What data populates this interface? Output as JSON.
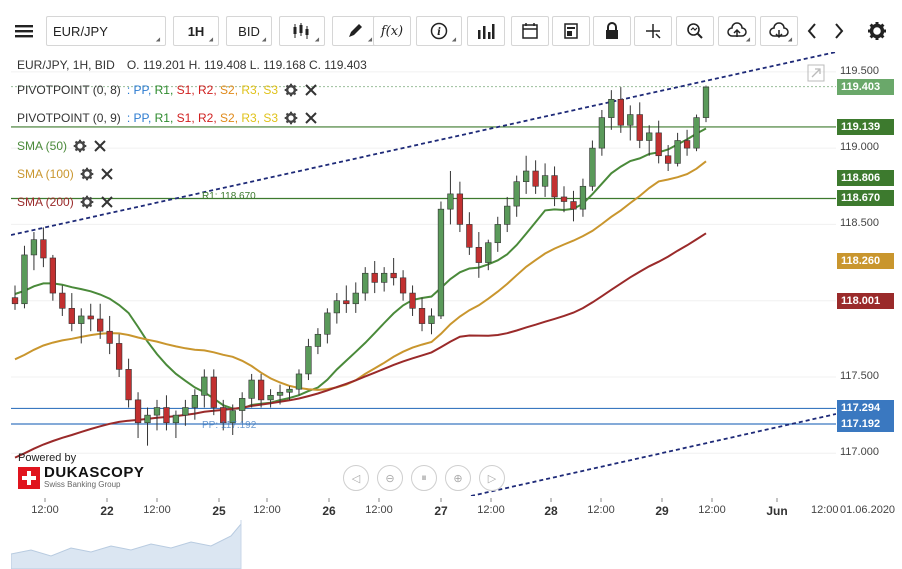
{
  "toolbar": {
    "symbol": "EUR/JPY",
    "period": "1H",
    "side": "BID",
    "icons": [
      "menu-icon",
      "candles-icon",
      "draw-icon",
      "function-icon",
      "info-icon",
      "volume-bars-icon",
      "calendar-icon",
      "book-icon",
      "lock-icon",
      "crosshair-icon",
      "zoom-icon",
      "upload-icon",
      "download-icon",
      "arrow-left-icon",
      "arrow-right-icon",
      "gear-icon"
    ]
  },
  "header": {
    "instrument": "EUR/JPY, 1H, BID",
    "ohlc": "O. 119.201 H. 119.408 L. 119.168 C. 119.403"
  },
  "indicators": [
    {
      "name": "PIVOTPOINT (0, 8)",
      "color": "#333333",
      "levels": true
    },
    {
      "name": "PIVOTPOINT (0, 9)",
      "color": "#333333",
      "levels": true
    },
    {
      "name": "SMA (50)",
      "color": "#4a8a3a"
    },
    {
      "name": "SMA (100)",
      "color": "#c9962e"
    },
    {
      "name": "SMA (200)",
      "color": "#9a2a2a"
    }
  ],
  "pivot_levels": {
    "sep": ":",
    "pp": "PP,",
    "r1": "R1,",
    "s1": "S1,",
    "r2": "R2,",
    "s2": "S2,",
    "r3": "R3,",
    "s3": "S3",
    "colors": {
      "pp": "#2b7bd0",
      "r1": "#2e8b2e",
      "s1": "#d02020",
      "r2": "#d02020",
      "s2": "#e08a1a",
      "r3": "#e0c21a",
      "s3": "#e0c21a"
    }
  },
  "annotations": {
    "r1_label": "R1: 118.670",
    "pp_label": "PP: 117.192"
  },
  "price_axis": {
    "labels": [
      "119.500",
      "119.000",
      "118.500",
      "117.500",
      "117.000"
    ],
    "tags": [
      {
        "value": "119.403",
        "color": "#6aa86a"
      },
      {
        "value": "119.139",
        "color": "#3d7a2e"
      },
      {
        "value": "118.806",
        "color": "#3d7a2e"
      },
      {
        "value": "118.670",
        "color": "#3d7a2e"
      },
      {
        "value": "118.260",
        "color": "#c9962e"
      },
      {
        "value": "118.001",
        "color": "#9a2a2a"
      },
      {
        "value": "117.294",
        "color": "#3a78c0"
      },
      {
        "value": "117.192",
        "color": "#3a78c0"
      }
    ]
  },
  "time_axis": {
    "labels": [
      {
        "text": "12:00",
        "bold": false
      },
      {
        "text": "22",
        "bold": true
      },
      {
        "text": "12:00",
        "bold": false
      },
      {
        "text": "25",
        "bold": true
      },
      {
        "text": "12:00",
        "bold": false
      },
      {
        "text": "26",
        "bold": true
      },
      {
        "text": "12:00",
        "bold": false
      },
      {
        "text": "27",
        "bold": true
      },
      {
        "text": "12:00",
        "bold": false
      },
      {
        "text": "28",
        "bold": true
      },
      {
        "text": "12:00",
        "bold": false
      },
      {
        "text": "29",
        "bold": true
      },
      {
        "text": "12:00",
        "bold": false
      },
      {
        "text": "Jun",
        "bold": true
      },
      {
        "text": "12:00",
        "bold": false
      },
      {
        "text": "01.06.2020",
        "bold": false
      }
    ]
  },
  "branding": {
    "powered_by": "Powered by",
    "name": "DUKASCOPY",
    "tagline": "Swiss Banking Group"
  },
  "chart_data": {
    "type": "candlestick",
    "ylim": [
      116.72,
      119.63
    ],
    "candles": [
      [
        118.02,
        118.1,
        117.94,
        117.98
      ],
      [
        117.98,
        118.36,
        117.95,
        118.3
      ],
      [
        118.3,
        118.45,
        118.2,
        118.4
      ],
      [
        118.4,
        118.48,
        118.22,
        118.28
      ],
      [
        118.28,
        118.3,
        118.0,
        118.05
      ],
      [
        118.05,
        118.1,
        117.9,
        117.95
      ],
      [
        117.95,
        118.05,
        117.8,
        117.85
      ],
      [
        117.85,
        117.95,
        117.72,
        117.9
      ],
      [
        117.9,
        117.98,
        117.8,
        117.88
      ],
      [
        117.88,
        117.98,
        117.75,
        117.8
      ],
      [
        117.8,
        117.9,
        117.65,
        117.72
      ],
      [
        117.72,
        117.78,
        117.5,
        117.55
      ],
      [
        117.55,
        117.62,
        117.3,
        117.35
      ],
      [
        117.35,
        117.4,
        117.1,
        117.2
      ],
      [
        117.2,
        117.3,
        117.05,
        117.25
      ],
      [
        117.25,
        117.35,
        117.15,
        117.3
      ],
      [
        117.3,
        117.38,
        117.15,
        117.2
      ],
      [
        117.2,
        117.28,
        117.1,
        117.25
      ],
      [
        117.25,
        117.35,
        117.18,
        117.3
      ],
      [
        117.3,
        117.42,
        117.22,
        117.38
      ],
      [
        117.38,
        117.55,
        117.3,
        117.5
      ],
      [
        117.5,
        117.55,
        117.25,
        117.3
      ],
      [
        117.3,
        117.35,
        117.15,
        117.2
      ],
      [
        117.2,
        117.32,
        117.12,
        117.28
      ],
      [
        117.28,
        117.4,
        117.2,
        117.36
      ],
      [
        117.36,
        117.52,
        117.3,
        117.48
      ],
      [
        117.48,
        117.52,
        117.3,
        117.35
      ],
      [
        117.35,
        117.42,
        117.3,
        117.38
      ],
      [
        117.38,
        117.45,
        117.32,
        117.4
      ],
      [
        117.4,
        117.44,
        117.35,
        117.42
      ],
      [
        117.42,
        117.55,
        117.38,
        117.52
      ],
      [
        117.52,
        117.75,
        117.48,
        117.7
      ],
      [
        117.7,
        117.82,
        117.65,
        117.78
      ],
      [
        117.78,
        117.95,
        117.72,
        117.92
      ],
      [
        117.92,
        118.05,
        117.85,
        118.0
      ],
      [
        118.0,
        118.1,
        117.92,
        117.98
      ],
      [
        117.98,
        118.12,
        117.92,
        118.05
      ],
      [
        118.05,
        118.22,
        118.0,
        118.18
      ],
      [
        118.18,
        118.26,
        118.05,
        118.12
      ],
      [
        118.12,
        118.22,
        118.06,
        118.18
      ],
      [
        118.18,
        118.28,
        118.1,
        118.15
      ],
      [
        118.15,
        118.2,
        118.0,
        118.05
      ],
      [
        118.05,
        118.1,
        117.9,
        117.95
      ],
      [
        117.95,
        118.02,
        117.8,
        117.85
      ],
      [
        117.85,
        117.95,
        117.78,
        117.9
      ],
      [
        117.9,
        118.65,
        117.88,
        118.6
      ],
      [
        118.6,
        118.85,
        118.5,
        118.7
      ],
      [
        118.7,
        118.78,
        118.45,
        118.5
      ],
      [
        118.5,
        118.58,
        118.3,
        118.35
      ],
      [
        118.35,
        118.45,
        118.15,
        118.25
      ],
      [
        118.25,
        118.4,
        118.2,
        118.38
      ],
      [
        118.38,
        118.55,
        118.32,
        118.5
      ],
      [
        118.5,
        118.68,
        118.45,
        118.62
      ],
      [
        118.62,
        118.82,
        118.55,
        118.78
      ],
      [
        118.78,
        118.95,
        118.7,
        118.85
      ],
      [
        118.85,
        118.92,
        118.7,
        118.75
      ],
      [
        118.75,
        118.9,
        118.68,
        118.82
      ],
      [
        118.82,
        118.88,
        118.62,
        118.68
      ],
      [
        118.68,
        118.75,
        118.58,
        118.65
      ],
      [
        118.65,
        118.72,
        118.52,
        118.6
      ],
      [
        118.6,
        118.8,
        118.55,
        118.75
      ],
      [
        118.75,
        119.05,
        118.72,
        119.0
      ],
      [
        119.0,
        119.25,
        118.95,
        119.2
      ],
      [
        119.2,
        119.38,
        119.12,
        119.32
      ],
      [
        119.32,
        119.4,
        119.1,
        119.15
      ],
      [
        119.15,
        119.28,
        119.05,
        119.22
      ],
      [
        119.22,
        119.3,
        119.0,
        119.05
      ],
      [
        119.05,
        119.15,
        118.95,
        119.1
      ],
      [
        119.1,
        119.18,
        118.9,
        118.95
      ],
      [
        118.95,
        119.02,
        118.85,
        118.9
      ],
      [
        118.9,
        119.1,
        118.88,
        119.05
      ],
      [
        119.05,
        119.12,
        118.95,
        119.0
      ],
      [
        119.0,
        119.22,
        118.98,
        119.2
      ],
      [
        119.2,
        119.41,
        119.17,
        119.4
      ]
    ]
  }
}
